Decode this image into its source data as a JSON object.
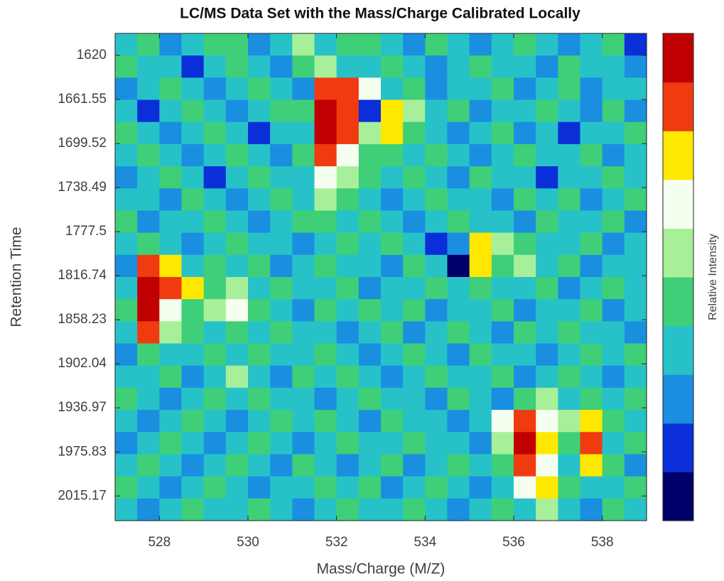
{
  "chart_data": {
    "type": "heatmap",
    "title": "LC/MS Data Set with the Mass/Charge Calibrated Locally",
    "x_label": "Mass/Charge (M/Z)",
    "y_label": "Retention Time",
    "colorbar_label": "Relative Intensity",
    "xlim": [
      527,
      539
    ],
    "xticks": [
      528,
      530,
      532,
      534,
      536,
      538
    ],
    "ylim": [
      0.5,
      11.56
    ],
    "yticks": [
      {
        "value": 1,
        "label": "1620"
      },
      {
        "value": 2,
        "label": "1661.55"
      },
      {
        "value": 3,
        "label": "1699.52"
      },
      {
        "value": 4,
        "label": "1738.49"
      },
      {
        "value": 5,
        "label": "1777.5"
      },
      {
        "value": 6,
        "label": "1816.74"
      },
      {
        "value": 7,
        "label": "1858.23"
      },
      {
        "value": 8,
        "label": "1902.04"
      },
      {
        "value": 9,
        "label": "1936.97"
      },
      {
        "value": 10,
        "label": "1975.83"
      },
      {
        "value": 11,
        "label": "2015.17"
      }
    ],
    "clim": [
      0,
      9
    ],
    "colormap": [
      "#00006a",
      "#0a2fd8",
      "#1a8fe0",
      "#27c2c8",
      "#3fcf78",
      "#a8ef9a",
      "#f4fff0",
      "#ffe800",
      "#f03a10",
      "#c00000"
    ],
    "z": [
      [
        3,
        4,
        2,
        3,
        4,
        4,
        2,
        3,
        5,
        3,
        4,
        4,
        3,
        2,
        4,
        3,
        2,
        3,
        4,
        3,
        2,
        3,
        4,
        1
      ],
      [
        4,
        3,
        3,
        1,
        3,
        4,
        3,
        2,
        4,
        5,
        3,
        3,
        4,
        3,
        2,
        3,
        4,
        3,
        3,
        2,
        4,
        3,
        3,
        2
      ],
      [
        2,
        3,
        4,
        3,
        2,
        3,
        4,
        3,
        2,
        8,
        8,
        6,
        3,
        4,
        2,
        3,
        3,
        4,
        2,
        3,
        4,
        2,
        3,
        3
      ],
      [
        3,
        1,
        3,
        4,
        3,
        2,
        3,
        4,
        4,
        9,
        8,
        1,
        7,
        5,
        3,
        4,
        2,
        3,
        3,
        4,
        3,
        2,
        4,
        2
      ],
      [
        4,
        3,
        2,
        3,
        4,
        3,
        1,
        3,
        3,
        9,
        8,
        5,
        7,
        4,
        3,
        2,
        3,
        4,
        2,
        3,
        1,
        3,
        3,
        4
      ],
      [
        3,
        4,
        3,
        2,
        3,
        4,
        3,
        2,
        4,
        8,
        6,
        4,
        4,
        3,
        4,
        3,
        2,
        3,
        4,
        3,
        3,
        4,
        2,
        3
      ],
      [
        2,
        3,
        4,
        3,
        1,
        3,
        4,
        3,
        3,
        6,
        5,
        4,
        3,
        4,
        3,
        2,
        4,
        3,
        3,
        1,
        3,
        3,
        4,
        3
      ],
      [
        3,
        3,
        2,
        4,
        3,
        2,
        3,
        4,
        3,
        5,
        4,
        3,
        2,
        3,
        4,
        3,
        3,
        2,
        4,
        3,
        4,
        2,
        3,
        4
      ],
      [
        4,
        2,
        3,
        3,
        4,
        3,
        2,
        3,
        4,
        4,
        3,
        4,
        3,
        2,
        3,
        4,
        3,
        3,
        2,
        4,
        3,
        3,
        4,
        2
      ],
      [
        3,
        4,
        3,
        2,
        3,
        4,
        3,
        3,
        2,
        3,
        4,
        3,
        4,
        3,
        1,
        2,
        7,
        5,
        4,
        3,
        3,
        4,
        2,
        3
      ],
      [
        2,
        8,
        7,
        3,
        4,
        3,
        4,
        2,
        3,
        4,
        3,
        3,
        2,
        4,
        3,
        0,
        7,
        4,
        5,
        3,
        4,
        2,
        3,
        3
      ],
      [
        3,
        9,
        8,
        7,
        4,
        5,
        3,
        4,
        3,
        3,
        4,
        2,
        3,
        3,
        4,
        3,
        4,
        3,
        3,
        4,
        2,
        3,
        4,
        3
      ],
      [
        4,
        9,
        6,
        4,
        5,
        6,
        4,
        3,
        2,
        4,
        3,
        4,
        3,
        4,
        2,
        3,
        3,
        4,
        2,
        3,
        3,
        4,
        2,
        3
      ],
      [
        3,
        8,
        5,
        4,
        3,
        4,
        3,
        4,
        3,
        3,
        2,
        3,
        4,
        2,
        3,
        4,
        3,
        2,
        4,
        3,
        4,
        3,
        3,
        2
      ],
      [
        2,
        4,
        3,
        3,
        4,
        3,
        4,
        3,
        3,
        4,
        3,
        2,
        3,
        4,
        3,
        2,
        4,
        3,
        3,
        2,
        3,
        4,
        3,
        4
      ],
      [
        3,
        3,
        4,
        2,
        3,
        5,
        3,
        2,
        4,
        3,
        4,
        3,
        2,
        3,
        4,
        3,
        3,
        4,
        2,
        3,
        4,
        3,
        2,
        3
      ],
      [
        4,
        3,
        2,
        3,
        4,
        3,
        4,
        3,
        3,
        2,
        3,
        4,
        3,
        3,
        2,
        4,
        3,
        2,
        4,
        5,
        3,
        4,
        3,
        4
      ],
      [
        3,
        2,
        3,
        4,
        3,
        2,
        3,
        4,
        3,
        4,
        3,
        2,
        4,
        3,
        3,
        2,
        3,
        6,
        8,
        6,
        5,
        7,
        4,
        3
      ],
      [
        2,
        3,
        4,
        3,
        2,
        3,
        4,
        3,
        2,
        3,
        4,
        3,
        3,
        4,
        3,
        3,
        2,
        5,
        9,
        7,
        4,
        8,
        3,
        4
      ],
      [
        3,
        4,
        3,
        2,
        3,
        4,
        3,
        2,
        4,
        3,
        2,
        3,
        4,
        2,
        3,
        4,
        3,
        4,
        8,
        6,
        3,
        7,
        4,
        2
      ],
      [
        4,
        3,
        2,
        3,
        4,
        3,
        2,
        3,
        3,
        4,
        3,
        4,
        2,
        3,
        4,
        3,
        2,
        3,
        6,
        7,
        4,
        3,
        3,
        4
      ],
      [
        3,
        2,
        3,
        4,
        3,
        3,
        4,
        3,
        2,
        3,
        4,
        3,
        3,
        4,
        3,
        2,
        3,
        4,
        3,
        5,
        3,
        2,
        4,
        3
      ]
    ]
  }
}
